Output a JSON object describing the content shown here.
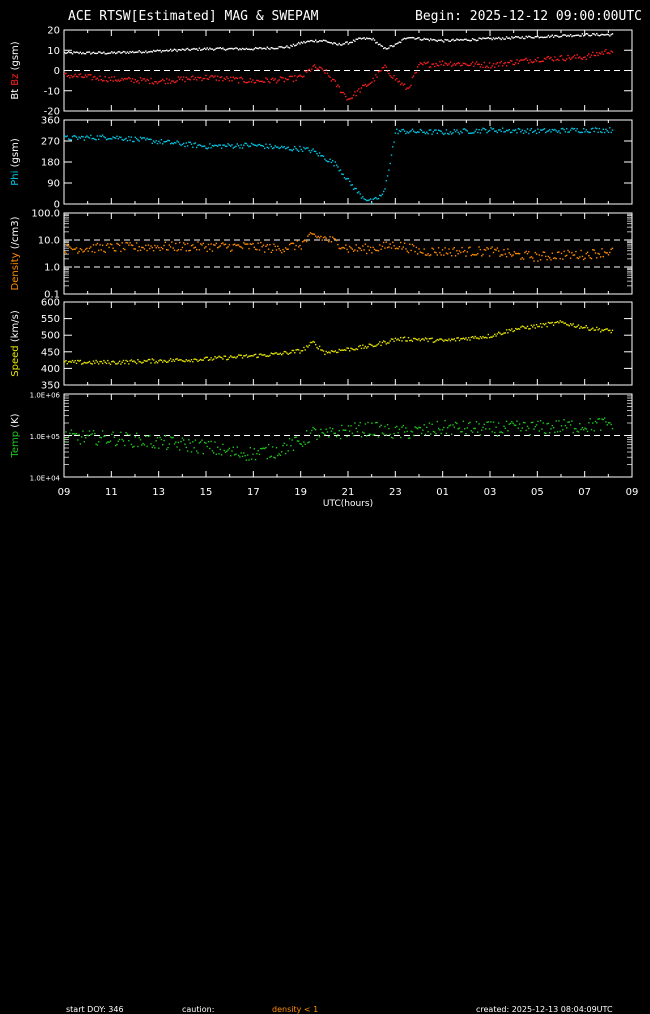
{
  "header": {
    "title": "ACE RTSW[Estimated] MAG & SWEPAM",
    "begin": "Begin: 2025-12-12 09:00:00UTC"
  },
  "footer": {
    "start_doy": "start DOY: 346",
    "caution": "caution:",
    "caution_note": "density < 1",
    "created": "created: 2025-12-13 08:04:09UTC"
  },
  "colors": {
    "bt": "#ffffff",
    "bz": "#ff2020",
    "phi": "#00c8e6",
    "density": "#ff8c00",
    "speed": "#e6e600",
    "temp": "#1ec81e",
    "axes": "#ffffff",
    "caution": "#ff8c00"
  },
  "chart_data": [
    {
      "type": "scatter",
      "panel": "mag_bt_bz",
      "ylabel_parts": [
        "Bt",
        "Bz",
        "(gsm)"
      ],
      "ylim": [
        -20,
        20
      ],
      "yticks": [
        "20",
        "10",
        "0",
        "-10",
        "-20"
      ],
      "reference_lines": [
        0
      ],
      "x_hours": [
        0,
        2,
        4,
        6,
        8,
        9.5,
        10,
        10.5,
        11,
        11.5,
        12,
        12.5,
        13,
        13.5,
        14,
        14.5,
        15,
        16,
        18,
        20,
        22,
        23
      ],
      "series": [
        {
          "key": "Bt",
          "values": [
            9,
            9,
            10,
            11,
            11,
            12,
            14,
            15,
            15,
            13,
            14,
            16,
            16,
            11,
            13,
            17,
            16,
            15,
            16,
            17,
            18,
            18
          ]
        },
        {
          "key": "Bz",
          "values": [
            -2,
            -4,
            -5,
            -3,
            -5,
            -4,
            -3,
            2,
            0,
            -7,
            -14,
            -9,
            -5,
            2,
            -4,
            -9,
            3,
            4,
            3,
            6,
            7,
            10
          ]
        }
      ]
    },
    {
      "type": "scatter",
      "panel": "phi",
      "ylabel": "Phi (gsm)",
      "ylim": [
        0,
        360
      ],
      "yticks": [
        "360",
        "270",
        "180",
        "90",
        "0"
      ],
      "x_hours": [
        0,
        2,
        4,
        6,
        8,
        9,
        9.5,
        10,
        10.5,
        11,
        11.5,
        12,
        12.5,
        13,
        13.5,
        14,
        16,
        18,
        20,
        22,
        23
      ],
      "values": [
        285,
        290,
        270,
        250,
        255,
        245,
        240,
        240,
        230,
        200,
        170,
        100,
        40,
        10,
        50,
        315,
        310,
        320,
        315,
        320,
        320
      ]
    },
    {
      "type": "scatter",
      "panel": "density",
      "ylabel": "Density (/cm3)",
      "y_scale": "log",
      "ylim": [
        0.1,
        100
      ],
      "yticks": [
        "100.0",
        "10.0",
        "1.0",
        "0.1"
      ],
      "reference_lines": [
        1,
        10
      ],
      "x_hours": [
        0,
        2,
        4,
        6,
        8,
        9,
        10,
        10.5,
        11,
        12,
        13,
        14,
        15,
        16,
        18,
        19,
        20,
        21,
        22,
        23
      ],
      "values": [
        5,
        5.5,
        6,
        6,
        6,
        5,
        7,
        15,
        12,
        5,
        5,
        7,
        4,
        4,
        4,
        3,
        2.5,
        3,
        3,
        4
      ]
    },
    {
      "type": "scatter",
      "panel": "speed",
      "ylabel": "Speed (km/s)",
      "ylim": [
        350,
        600
      ],
      "yticks": [
        "600",
        "550",
        "500",
        "450",
        "400",
        "350"
      ],
      "x_hours": [
        0,
        2,
        4,
        6,
        8,
        9,
        10,
        10.5,
        11,
        12,
        13,
        14,
        15,
        16,
        18,
        19,
        20,
        21,
        22,
        23
      ],
      "values": [
        420,
        420,
        425,
        430,
        440,
        445,
        455,
        480,
        450,
        460,
        470,
        490,
        490,
        485,
        500,
        520,
        530,
        540,
        525,
        515
      ]
    },
    {
      "type": "scatter",
      "panel": "temp",
      "ylabel": "Temp (K)",
      "y_scale": "log",
      "ylim": [
        10000,
        1000000
      ],
      "yticks": [
        "1.0E+06",
        "1.0E+05",
        "1.0E+04"
      ],
      "reference_lines": [
        100000
      ],
      "x_hours": [
        0,
        2,
        4,
        6,
        7,
        8,
        9,
        9.5,
        10,
        10.5,
        11,
        12,
        13,
        14,
        15,
        16,
        18,
        20,
        22,
        23
      ],
      "values": [
        95000,
        90000,
        70000,
        55000,
        40000,
        38000,
        45000,
        60000,
        70000,
        120000,
        100000,
        140000,
        150000,
        120000,
        130000,
        160000,
        150000,
        160000,
        180000,
        200000
      ]
    }
  ],
  "x_axis": {
    "label": "UTC(hours)",
    "ticks": [
      "09",
      "11",
      "13",
      "15",
      "17",
      "19",
      "21",
      "23",
      "01",
      "03",
      "05",
      "07",
      "09"
    ]
  }
}
